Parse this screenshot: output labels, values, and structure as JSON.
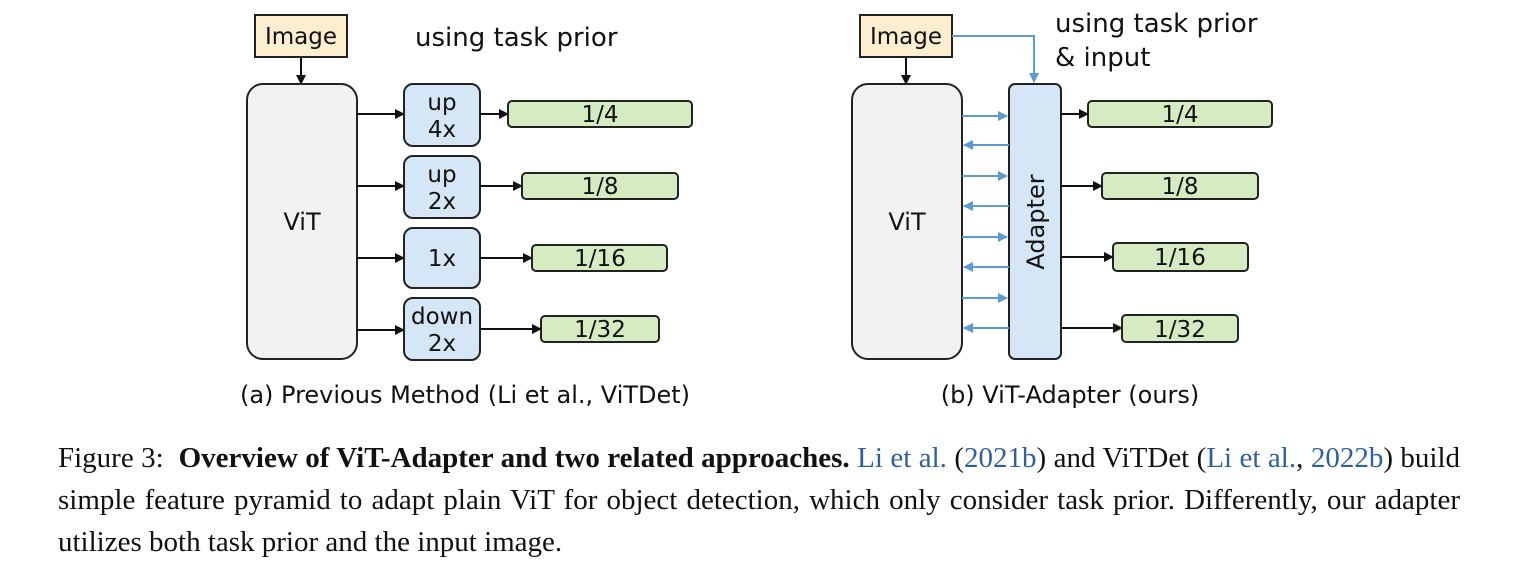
{
  "left": {
    "image_label": "Image",
    "prior_label": "using task prior",
    "vit_label": "ViT",
    "ops": [
      {
        "line1": "up",
        "line2": "4x"
      },
      {
        "line1": "up",
        "line2": "2x"
      },
      {
        "line1": "1x",
        "line2": ""
      },
      {
        "line1": "down",
        "line2": "2x"
      }
    ],
    "outputs": [
      "1/4",
      "1/8",
      "1/16",
      "1/32"
    ],
    "subcaption": "(a) Previous Method (Li et al., ViTDet)"
  },
  "right": {
    "image_label": "Image",
    "prior_line1": "using task prior",
    "prior_line2": "& input",
    "vit_label": "ViT",
    "adapter_label": "Adapter",
    "outputs": [
      "1/4",
      "1/8",
      "1/16",
      "1/32"
    ],
    "subcaption": "(b) ViT-Adapter (ours)"
  },
  "colors": {
    "image_box": "#fdeed0",
    "vit_box": "#f2f2f2",
    "op_box": "#d5e6f7",
    "output_box": "#d5ebc2",
    "blue_arrow": "#5b9bd5",
    "citation": "#2f5fa0"
  },
  "caption": {
    "prefix": "Figure 3:",
    "bold": "Overview of ViT-Adapter and two related approaches.",
    "cite1": "Li et al.",
    "p1": " (",
    "cite1_year": "2021b",
    "p2": ") and ViTDet (",
    "cite2": "Li et al.",
    "p3": ", ",
    "cite2_year": "2022b",
    "rest": ") build simple feature pyramid to adapt plain ViT for object detection, which only consider task prior. Differently, our adapter utilizes both task prior and the input image."
  }
}
